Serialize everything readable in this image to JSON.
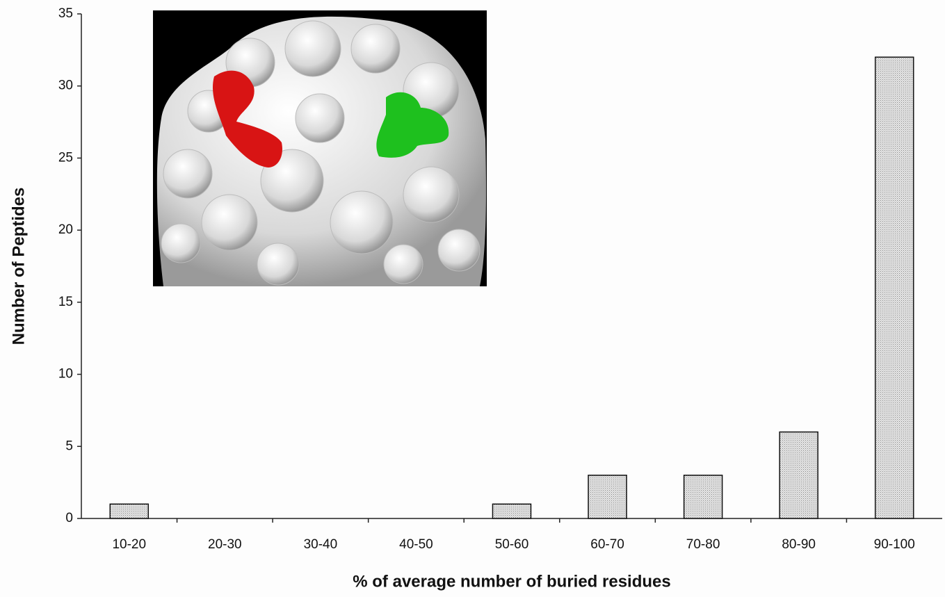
{
  "chart_data": {
    "type": "bar",
    "xlabel": "% of average number of buried residues",
    "ylabel": "Number of Peptides",
    "categories": [
      "10-20",
      "20-30",
      "30-40",
      "40-50",
      "50-60",
      "60-70",
      "70-80",
      "80-90",
      "90-100"
    ],
    "values": [
      1,
      0,
      0,
      0,
      1,
      3,
      3,
      6,
      32
    ],
    "color": "#d4d4d4",
    "ylim": [
      0,
      35
    ],
    "yticks": [
      0,
      5,
      10,
      15,
      20,
      25,
      30,
      35
    ],
    "grid": false
  }
}
